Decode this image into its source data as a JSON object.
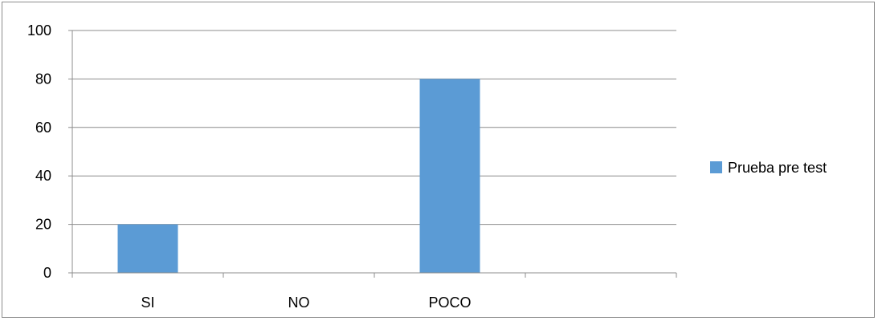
{
  "chart_data": {
    "type": "bar",
    "categories": [
      "SI",
      "NO",
      "POCO",
      ""
    ],
    "series": [
      {
        "name": "Prueba pre test",
        "values": [
          20,
          0,
          80,
          0
        ],
        "color": "#5b9bd5"
      }
    ],
    "y_ticks": [
      "0",
      "20",
      "40",
      "60",
      "80",
      "100"
    ],
    "ylim": [
      0,
      100
    ],
    "grid": true,
    "legend_position": "right",
    "title": "",
    "xlabel": "",
    "ylabel": ""
  }
}
